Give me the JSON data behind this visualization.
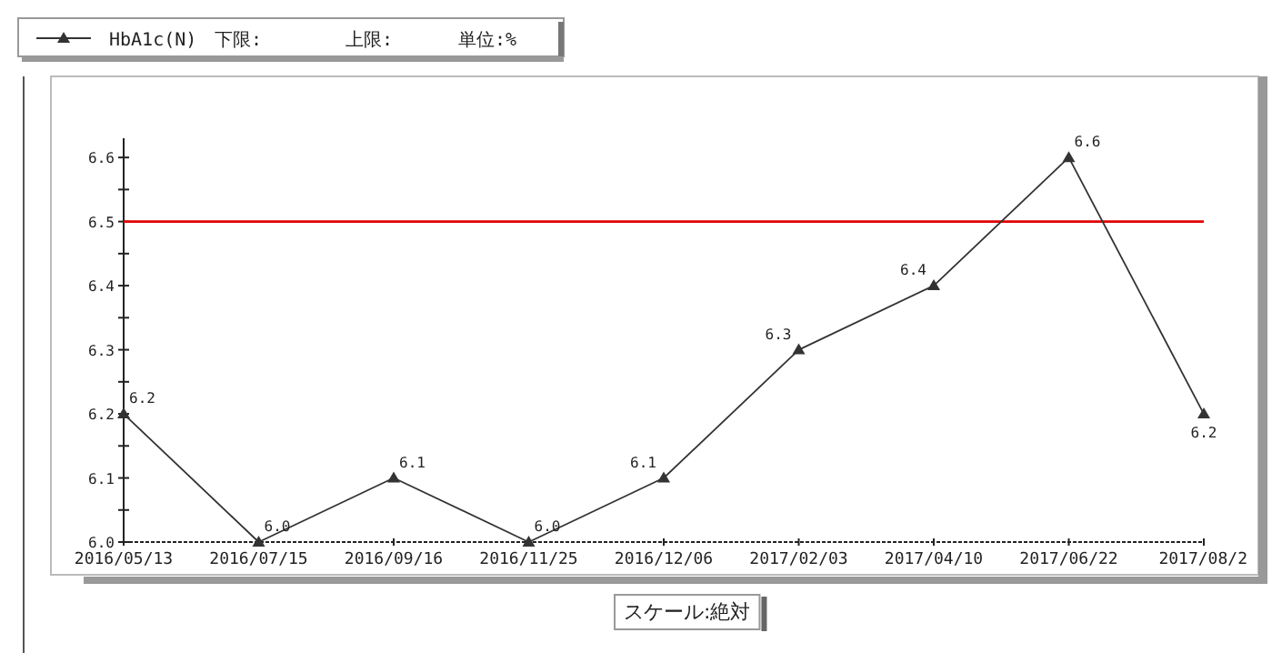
{
  "chart_data": {
    "type": "line",
    "categories": [
      "2016/05/13",
      "2016/07/15",
      "2016/09/16",
      "2016/11/25",
      "2016/12/06",
      "2017/02/03",
      "2017/04/10",
      "2017/06/22",
      "2017/08/2"
    ],
    "series": [
      {
        "name": "HbA1c(N)",
        "color": "#333333",
        "values": [
          6.2,
          6.0,
          6.1,
          6.0,
          6.1,
          6.3,
          6.4,
          6.6,
          6.2
        ],
        "value_labels": [
          "6.2",
          "6.0",
          "6.1",
          "6.0",
          "6.1",
          "6.3",
          "6.4",
          "6.6",
          "6.2"
        ]
      }
    ],
    "ylim": [
      6.0,
      6.63
    ],
    "yticks": [
      {
        "value": 6.0,
        "label": "6.0"
      },
      {
        "value": 6.05,
        "label": null
      },
      6.1,
      {
        "value": 6.15,
        "label": null
      },
      6.2,
      {
        "value": 6.25,
        "label": null
      },
      6.3,
      {
        "value": 6.35,
        "label": null
      },
      6.4,
      {
        "value": 6.45,
        "label": null
      },
      6.5,
      {
        "value": 6.55,
        "label": null
      },
      6.6
    ],
    "ref_lines": [
      {
        "axis": "y",
        "value": 6.5,
        "color": "#e00000"
      }
    ],
    "marker": "triangle",
    "line_style": "solid",
    "legend": "top left",
    "annotations": [
      "下限:",
      "上限:",
      "単位:%",
      "スケール:絶対"
    ]
  }
}
